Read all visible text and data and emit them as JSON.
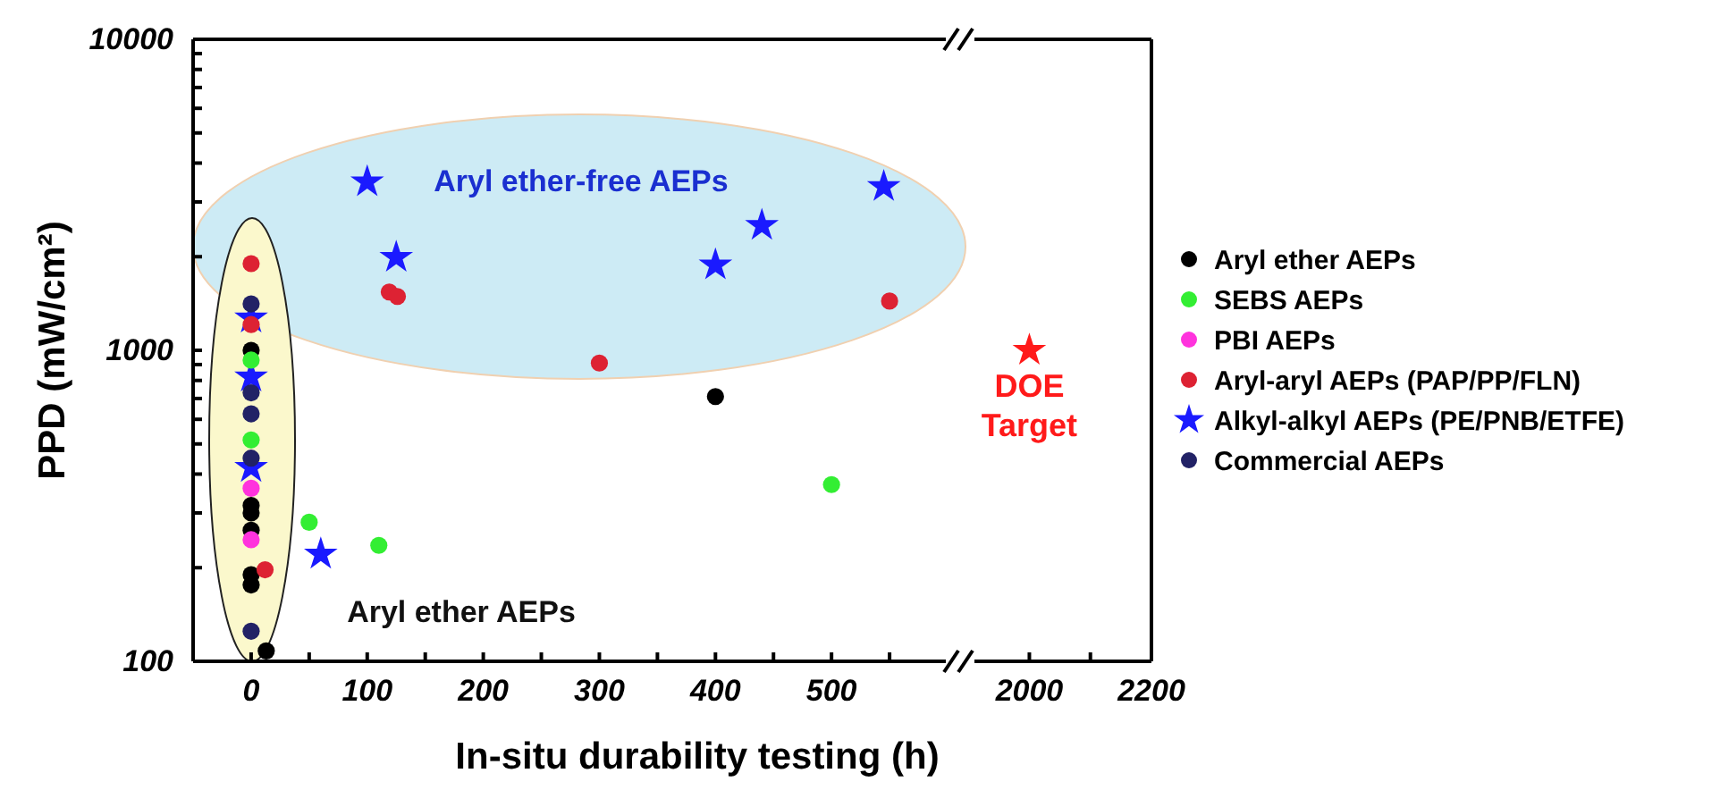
{
  "chart_data": [
    {
      "type": "scatter",
      "xlabel": "In-situ durability testing (h)",
      "ylabel": "PPD (mW/cm²)",
      "xlim": [
        -50,
        600
      ],
      "xticks": [
        0,
        {
          "value": 50,
          "label": null
        },
        100,
        {
          "value": 150,
          "label": null
        },
        200,
        {
          "value": 250,
          "label": null
        },
        300,
        {
          "value": 350,
          "label": null
        },
        400,
        {
          "value": 450,
          "label": null
        },
        500,
        {
          "value": 550,
          "label": null
        }
      ],
      "ylim": [
        100,
        10000
      ],
      "yticks": [
        100,
        {
          "value": 200,
          "label": null
        },
        {
          "value": 300,
          "label": null
        },
        {
          "value": 400,
          "label": null
        },
        {
          "value": 500,
          "label": null
        },
        {
          "value": 600,
          "label": null
        },
        {
          "value": 700,
          "label": null
        },
        {
          "value": 800,
          "label": null
        },
        {
          "value": 900,
          "label": null
        },
        1000,
        {
          "value": 2000,
          "label": null
        },
        {
          "value": 3000,
          "label": null
        },
        {
          "value": 4000,
          "label": null
        },
        {
          "value": 5000,
          "label": null
        },
        {
          "value": 6000,
          "label": null
        },
        {
          "value": 7000,
          "label": null
        },
        {
          "value": 8000,
          "label": null
        },
        {
          "value": 9000,
          "label": null
        },
        10000
      ],
      "log": "y",
      "legend": "right",
      "series": [
        {
          "name": "Aryl ether AEPs",
          "color": "#000000",
          "marker": "circle",
          "x": [
            0,
            0,
            0,
            0,
            0,
            0,
            13,
            400
          ],
          "values": [
            1000,
            317,
            300,
            264,
            190,
            176,
            108,
            710
          ]
        },
        {
          "name": "SEBS AEPs",
          "color": "#33ee33",
          "marker": "circle",
          "x": [
            0,
            0,
            50,
            110,
            500
          ],
          "values": [
            930,
            515,
            280,
            236,
            370
          ]
        },
        {
          "name": "PBI AEPs",
          "color": "#ff33dd",
          "marker": "circle",
          "x": [
            0,
            0
          ],
          "values": [
            360,
            246
          ]
        },
        {
          "name": "Aryl-aryl AEPs (PAP/PP/FLN)",
          "color": "#dd2233",
          "marker": "circle",
          "x": [
            0,
            0,
            12,
            119,
            126,
            300,
            550
          ],
          "values": [
            1900,
            1210,
            197,
            1540,
            1490,
            910,
            1440
          ]
        },
        {
          "name": "Alkyl-alkyl AEPs (PE/PNB/ETFE)",
          "color": "#1a1aff",
          "marker": "star",
          "x": [
            0,
            0,
            0,
            60,
            100,
            125,
            400,
            440,
            545
          ],
          "values": [
            1270,
            820,
            420,
            221,
            3480,
            1990,
            1880,
            2520,
            3360
          ]
        },
        {
          "name": "Commercial AEPs",
          "color": "#222266",
          "marker": "circle",
          "x": [
            0,
            0,
            0,
            0,
            0
          ],
          "values": [
            1410,
            730,
            625,
            450,
            125
          ]
        }
      ],
      "annotations": [
        "Aryl ether-free AEPs",
        "Aryl ether AEPs"
      ]
    },
    {
      "type": "scatter",
      "xlim": [
        1910,
        2200
      ],
      "xticks": [
        2000,
        {
          "value": 2100,
          "label": null
        },
        2200
      ],
      "ylim": [
        100,
        10000
      ],
      "log": "y",
      "tick_labels": "x",
      "series": [
        {
          "color": "#ff1a1a",
          "marker": "star",
          "x": [
            2000
          ],
          "values": [
            1000
          ]
        }
      ],
      "annotations": [
        {
          "text": "DOE Target",
          "x": 2000,
          "y": 1000
        }
      ]
    }
  ]
}
